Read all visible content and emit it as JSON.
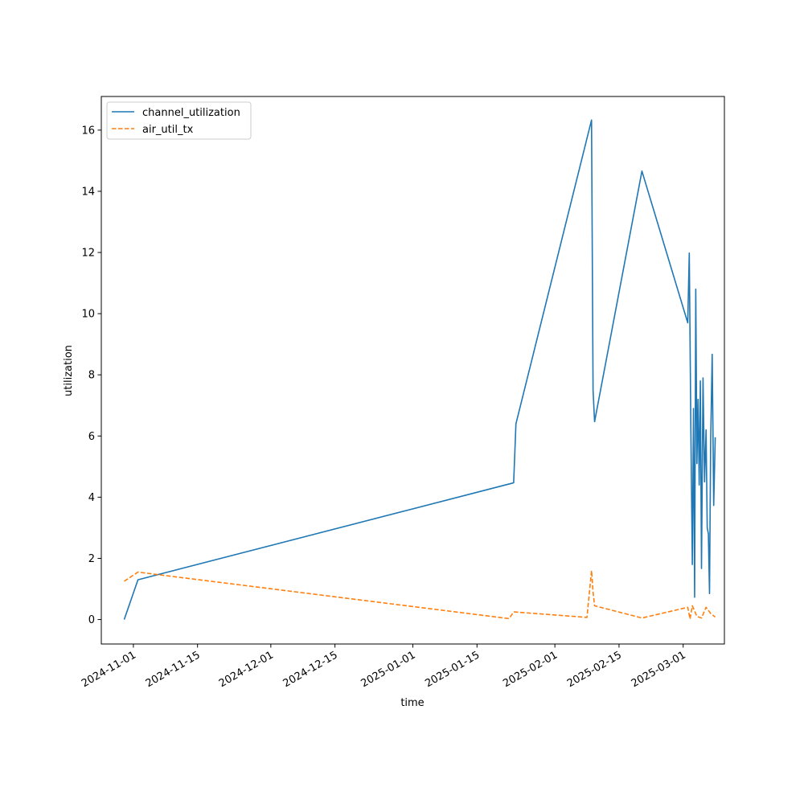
{
  "chart_data": {
    "type": "line",
    "title": "",
    "xlabel": "time",
    "ylabel": "utilization",
    "x_ticks": [
      "2024-11-01",
      "2024-11-15",
      "2024-12-01",
      "2024-12-15",
      "2025-01-01",
      "2025-01-15",
      "2025-02-01",
      "2025-02-15",
      "2025-03-01"
    ],
    "y_ticks": [
      0,
      2,
      4,
      6,
      8,
      10,
      12,
      14,
      16
    ],
    "xlim": [
      "2024-10-25",
      "2025-03-10"
    ],
    "ylim": [
      -0.8,
      17.1
    ],
    "grid": false,
    "legend": "top-left",
    "series": [
      {
        "name": "channel_utilization",
        "color": "#1f77b4",
        "style": "solid",
        "points": [
          [
            "2024-10-30",
            0.0
          ],
          [
            "2024-11-02",
            1.3
          ],
          [
            "2025-01-23",
            4.47
          ],
          [
            "2025-01-23",
            6.4
          ],
          [
            "2025-02-09",
            16.33
          ],
          [
            "2025-02-09",
            7.5
          ],
          [
            "2025-02-09",
            6.47
          ],
          [
            "2025-02-20",
            14.66
          ],
          [
            "2025-03-02",
            9.7
          ],
          [
            "2025-03-02",
            11.98
          ],
          [
            "2025-03-02",
            6.4
          ],
          [
            "2025-03-03",
            1.8
          ],
          [
            "2025-03-03",
            6.9
          ],
          [
            "2025-03-03",
            0.73
          ],
          [
            "2025-03-03",
            10.8
          ],
          [
            "2025-03-04",
            5.1
          ],
          [
            "2025-03-04",
            7.2
          ],
          [
            "2025-03-04",
            4.4
          ],
          [
            "2025-03-04",
            7.8
          ],
          [
            "2025-03-05",
            1.67
          ],
          [
            "2025-03-05",
            7.9
          ],
          [
            "2025-03-05",
            4.5
          ],
          [
            "2025-03-06",
            6.2
          ],
          [
            "2025-03-06",
            3.0
          ],
          [
            "2025-03-06",
            2.8
          ],
          [
            "2025-03-06",
            0.85
          ],
          [
            "2025-03-07",
            5.8
          ],
          [
            "2025-03-07",
            8.67
          ],
          [
            "2025-03-07",
            3.73
          ],
          [
            "2025-03-08",
            5.96
          ]
        ]
      },
      {
        "name": "air_util_tx",
        "color": "#ff7f0e",
        "style": "dashed",
        "points": [
          [
            "2024-10-30",
            1.25
          ],
          [
            "2024-11-02",
            1.55
          ],
          [
            "2025-01-22",
            0.03
          ],
          [
            "2025-01-23",
            0.25
          ],
          [
            "2025-02-08",
            0.07
          ],
          [
            "2025-02-09",
            1.6
          ],
          [
            "2025-02-09",
            0.9
          ],
          [
            "2025-02-09",
            0.45
          ],
          [
            "2025-02-20",
            0.05
          ],
          [
            "2025-03-02",
            0.4
          ],
          [
            "2025-03-02",
            0.02
          ],
          [
            "2025-03-03",
            0.45
          ],
          [
            "2025-03-04",
            0.1
          ],
          [
            "2025-03-05",
            0.05
          ],
          [
            "2025-03-06",
            0.4
          ],
          [
            "2025-03-07",
            0.2
          ],
          [
            "2025-03-08",
            0.08
          ]
        ]
      }
    ]
  }
}
